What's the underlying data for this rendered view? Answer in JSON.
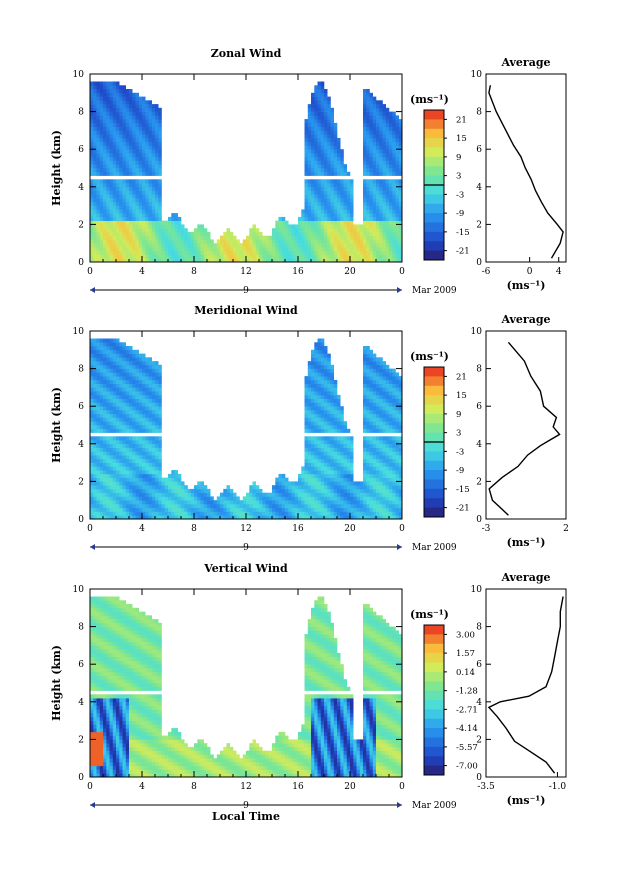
{
  "page": {
    "xlabel": "Local Time",
    "date_label": "Mar 2009",
    "day_label": "9",
    "unit_label": "(ms⁻¹)",
    "avg_xlabel": "(ms⁻¹)"
  },
  "chart_data": [
    {
      "type": "heatmap",
      "title": "Zonal Wind",
      "ylabel": "Height (km)",
      "xlabel": "",
      "xlim": [
        0,
        24
      ],
      "ylim": [
        0,
        10
      ],
      "x_ticks": [
        "0",
        "4",
        "8",
        "12",
        "16",
        "20",
        "0"
      ],
      "y_ticks": [
        "0",
        "2",
        "4",
        "6",
        "8",
        "10"
      ],
      "colorbar": {
        "label": "(ms⁻¹)",
        "ticks": [
          "21",
          "15",
          "9",
          "3",
          "-3",
          "-9",
          "-15",
          "-21"
        ],
        "range": [
          -24,
          24
        ],
        "zero_line": true
      },
      "average": {
        "title": "Average",
        "xlim": [
          -6,
          5
        ],
        "ylim": [
          0,
          10
        ],
        "x_ticks": [
          "-6",
          "0",
          "4"
        ],
        "y_ticks": [
          "0",
          "2",
          "4",
          "6",
          "8",
          "10"
        ],
        "xlabel": "(ms⁻¹)",
        "profile": [
          [
            3.0,
            0.2
          ],
          [
            4.2,
            1.0
          ],
          [
            4.6,
            1.6
          ],
          [
            3.8,
            2.0
          ],
          [
            2.5,
            2.6
          ],
          [
            1.6,
            3.2
          ],
          [
            0.8,
            3.8
          ],
          [
            0.2,
            4.4
          ],
          [
            -0.6,
            5.0
          ],
          [
            -1.2,
            5.6
          ],
          [
            -2.2,
            6.2
          ],
          [
            -3.0,
            6.8
          ],
          [
            -3.8,
            7.4
          ],
          [
            -4.6,
            8.0
          ],
          [
            -5.2,
            8.6
          ],
          [
            -5.6,
            9.0
          ],
          [
            -5.4,
            9.4
          ]
        ]
      }
    },
    {
      "type": "heatmap",
      "title": "Meridional Wind",
      "ylabel": "Height (km)",
      "xlabel": "",
      "xlim": [
        0,
        24
      ],
      "ylim": [
        0,
        10
      ],
      "x_ticks": [
        "0",
        "4",
        "8",
        "12",
        "16",
        "20",
        "0"
      ],
      "y_ticks": [
        "0",
        "2",
        "4",
        "6",
        "8",
        "10"
      ],
      "colorbar": {
        "label": "(ms⁻¹)",
        "ticks": [
          "21",
          "15",
          "9",
          "3",
          "-3",
          "-9",
          "-15",
          "-21"
        ],
        "range": [
          -24,
          24
        ],
        "zero_line": true
      },
      "average": {
        "title": "Average",
        "xlim": [
          -3,
          2
        ],
        "ylim": [
          0,
          10
        ],
        "x_ticks": [
          "-3",
          "2"
        ],
        "y_ticks": [
          "0",
          "2",
          "4",
          "6",
          "8",
          "10"
        ],
        "xlabel": "(ms⁻¹)",
        "profile": [
          [
            -1.6,
            0.2
          ],
          [
            -2.6,
            1.0
          ],
          [
            -2.8,
            1.6
          ],
          [
            -2.0,
            2.2
          ],
          [
            -1.0,
            2.8
          ],
          [
            -0.4,
            3.4
          ],
          [
            0.4,
            3.9
          ],
          [
            1.0,
            4.2
          ],
          [
            1.6,
            4.5
          ],
          [
            1.2,
            4.9
          ],
          [
            1.4,
            5.4
          ],
          [
            0.6,
            6.0
          ],
          [
            0.4,
            6.8
          ],
          [
            -0.2,
            7.6
          ],
          [
            -0.6,
            8.4
          ],
          [
            -1.2,
            9.0
          ],
          [
            -1.6,
            9.4
          ]
        ]
      }
    },
    {
      "type": "heatmap",
      "title": "Vertical Wind",
      "ylabel": "Height (km)",
      "xlabel": "Local Time",
      "xlim": [
        0,
        24
      ],
      "ylim": [
        0,
        10
      ],
      "x_ticks": [
        "0",
        "4",
        "8",
        "12",
        "16",
        "20",
        "0"
      ],
      "y_ticks": [
        "0",
        "2",
        "4",
        "6",
        "8",
        "10"
      ],
      "colorbar": {
        "label": "(ms⁻¹)",
        "ticks": [
          "3.00",
          "1.57",
          "0.14",
          "-1.28",
          "-2.71",
          "-4.14",
          "-5.57",
          "-7.00"
        ],
        "range": [
          -7.7,
          3.7
        ],
        "zero_line": false
      },
      "average": {
        "title": "Average",
        "xlim": [
          -3.5,
          -0.7
        ],
        "ylim": [
          0,
          10
        ],
        "x_ticks": [
          "-3.5",
          "-1.0"
        ],
        "y_ticks": [
          "0",
          "2",
          "4",
          "6",
          "8",
          "10"
        ],
        "xlabel": "(ms⁻¹)",
        "profile": [
          [
            -1.1,
            0.2
          ],
          [
            -1.4,
            0.8
          ],
          [
            -2.0,
            1.4
          ],
          [
            -2.5,
            1.9
          ],
          [
            -2.8,
            2.6
          ],
          [
            -3.1,
            3.2
          ],
          [
            -3.4,
            3.7
          ],
          [
            -3.0,
            4.0
          ],
          [
            -2.0,
            4.3
          ],
          [
            -1.4,
            4.8
          ],
          [
            -1.2,
            5.6
          ],
          [
            -1.1,
            6.4
          ],
          [
            -1.0,
            7.2
          ],
          [
            -0.9,
            8.0
          ],
          [
            -0.9,
            8.8
          ],
          [
            -0.8,
            9.6
          ]
        ]
      }
    }
  ]
}
